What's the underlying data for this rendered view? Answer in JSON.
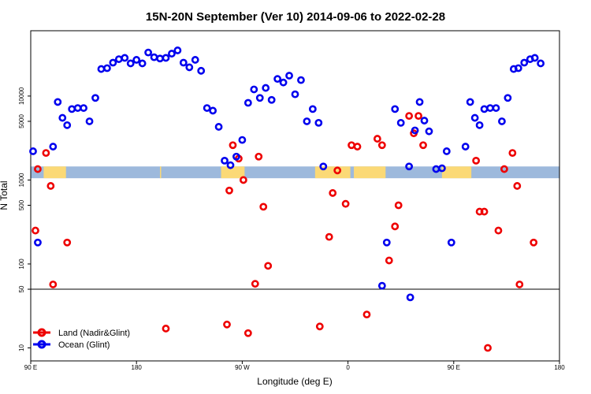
{
  "chart_data": {
    "type": "scatter",
    "title": "15N-20N September (Ver 10)   2014-09-06 to 2022-02-28",
    "xlabel": "Longitude (deg E)",
    "ylabel": "N Total",
    "x_axis": {
      "range_deg_east": [
        90,
        450
      ],
      "ticks": [
        {
          "value": 90,
          "label": "90 E"
        },
        {
          "value": 180,
          "label": "180"
        },
        {
          "value": 270,
          "label": "90 W"
        },
        {
          "value": 360,
          "label": "0"
        },
        {
          "value": 450,
          "label": "90 E"
        },
        {
          "value": 540,
          "label": "180"
        }
      ],
      "range": [
        90,
        540
      ]
    },
    "y_axis": {
      "scale": "log",
      "range": [
        7,
        60000
      ],
      "ticks": [
        {
          "value": 10,
          "label": "10"
        },
        {
          "value": 50,
          "label": "50"
        },
        {
          "value": 100,
          "label": "100"
        },
        {
          "value": 500,
          "label": "500"
        },
        {
          "value": 1000,
          "label": "1000"
        },
        {
          "value": 5000,
          "label": "5000"
        },
        {
          "value": 10000,
          "label": "10000"
        }
      ]
    },
    "reference_line": 50,
    "band": {
      "from": 1050,
      "to": 1450,
      "ocean_color": "#9db9dc",
      "land_color": "#fbd976",
      "land_ranges": [
        [
          101,
          120
        ],
        [
          200,
          201
        ],
        [
          252,
          272
        ],
        [
          332,
          362
        ],
        [
          365,
          392
        ],
        [
          440,
          465
        ]
      ]
    },
    "legend": {
      "placement": "bottom-left"
    },
    "series": [
      {
        "name": "Land (Nadir&Glint)",
        "color": "#ee0000",
        "points": [
          [
            94,
            250
          ],
          [
            96,
            1350
          ],
          [
            103,
            2100
          ],
          [
            107,
            850
          ],
          [
            109,
            57
          ],
          [
            121,
            180
          ],
          [
            205,
            17
          ],
          [
            257,
            19
          ],
          [
            259,
            750
          ],
          [
            262,
            2600
          ],
          [
            267,
            1800
          ],
          [
            271,
            1000
          ],
          [
            275,
            15
          ],
          [
            281,
            58
          ],
          [
            284,
            1900
          ],
          [
            288,
            480
          ],
          [
            292,
            95
          ],
          [
            336,
            18
          ],
          [
            344,
            210
          ],
          [
            347,
            700
          ],
          [
            351,
            1300
          ],
          [
            358,
            520
          ],
          [
            363,
            2600
          ],
          [
            368,
            2500
          ],
          [
            376,
            25
          ],
          [
            385,
            3100
          ],
          [
            389,
            2600
          ],
          [
            395,
            110
          ],
          [
            400,
            280
          ],
          [
            403,
            500
          ],
          [
            412,
            5800
          ],
          [
            416,
            3600
          ],
          [
            420,
            5800
          ],
          [
            424,
            2600
          ],
          [
            469,
            1700
          ],
          [
            472,
            420
          ],
          [
            476,
            420
          ],
          [
            479,
            10
          ],
          [
            488,
            250
          ],
          [
            493,
            1350
          ],
          [
            500,
            2100
          ],
          [
            504,
            850
          ],
          [
            506,
            57
          ],
          [
            518,
            180
          ]
        ]
      },
      {
        "name": "Ocean (Glint)",
        "color": "#0000ee",
        "points": [
          [
            92,
            2200
          ],
          [
            96,
            180
          ],
          [
            109,
            2500
          ],
          [
            113,
            8500
          ],
          [
            117,
            5500
          ],
          [
            121,
            4500
          ],
          [
            125,
            7000
          ],
          [
            130,
            7200
          ],
          [
            135,
            7200
          ],
          [
            140,
            5000
          ],
          [
            145,
            9500
          ],
          [
            150,
            21000
          ],
          [
            155,
            21500
          ],
          [
            160,
            25000
          ],
          [
            165,
            27500
          ],
          [
            170,
            28500
          ],
          [
            175,
            24500
          ],
          [
            180,
            27000
          ],
          [
            185,
            24500
          ],
          [
            190,
            33000
          ],
          [
            195,
            29000
          ],
          [
            200,
            28000
          ],
          [
            205,
            28500
          ],
          [
            210,
            32000
          ],
          [
            215,
            35000
          ],
          [
            220,
            25000
          ],
          [
            225,
            22000
          ],
          [
            230,
            27000
          ],
          [
            235,
            20000
          ],
          [
            240,
            7200
          ],
          [
            245,
            6700
          ],
          [
            250,
            4300
          ],
          [
            255,
            1700
          ],
          [
            260,
            1500
          ],
          [
            265,
            1900
          ],
          [
            270,
            3000
          ],
          [
            275,
            8300
          ],
          [
            280,
            12000
          ],
          [
            285,
            9500
          ],
          [
            290,
            12500
          ],
          [
            295,
            9000
          ],
          [
            300,
            16000
          ],
          [
            305,
            14500
          ],
          [
            310,
            17500
          ],
          [
            315,
            10500
          ],
          [
            320,
            15500
          ],
          [
            325,
            5000
          ],
          [
            330,
            7000
          ],
          [
            335,
            4800
          ],
          [
            339,
            1450
          ],
          [
            389,
            55
          ],
          [
            393,
            180
          ],
          [
            400,
            7000
          ],
          [
            405,
            4800
          ],
          [
            412,
            1450
          ],
          [
            413,
            40
          ],
          [
            417,
            3900
          ],
          [
            421,
            8500
          ],
          [
            425,
            5100
          ],
          [
            429,
            3800
          ],
          [
            435,
            1350
          ],
          [
            440,
            1380
          ],
          [
            444,
            2200
          ],
          [
            448,
            180
          ],
          [
            460,
            2500
          ],
          [
            464,
            8500
          ],
          [
            468,
            5500
          ],
          [
            472,
            4500
          ],
          [
            476,
            7000
          ],
          [
            481,
            7200
          ],
          [
            486,
            7200
          ],
          [
            491,
            5000
          ],
          [
            496,
            9500
          ],
          [
            501,
            21000
          ],
          [
            505,
            21500
          ],
          [
            510,
            25000
          ],
          [
            515,
            27500
          ],
          [
            519,
            28500
          ],
          [
            524,
            24500
          ]
        ]
      }
    ]
  }
}
